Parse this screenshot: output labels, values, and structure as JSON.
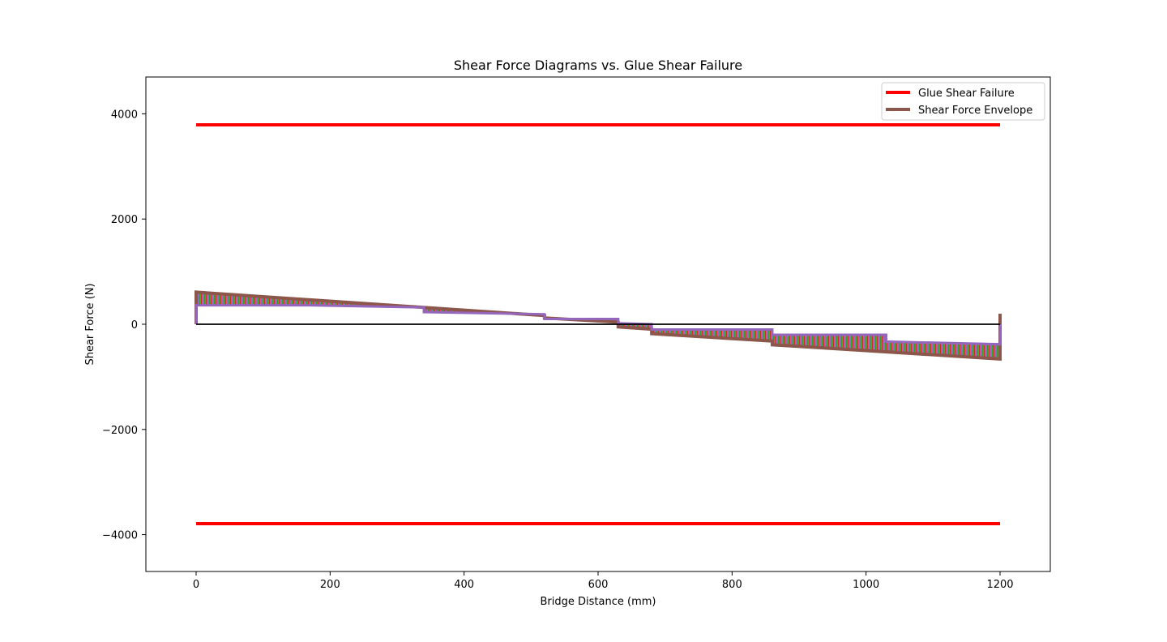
{
  "chart_data": {
    "type": "line",
    "title": "Shear Force Diagrams vs. Glue Shear Failure",
    "xlabel": "Bridge Distance (mm)",
    "ylabel": "Shear Force (N)",
    "xlim": [
      -75,
      1275
    ],
    "ylim": [
      -4700,
      4700
    ],
    "xticks": [
      0,
      200,
      400,
      600,
      800,
      1000,
      1200
    ],
    "xtick_labels": [
      "0",
      "200",
      "400",
      "600",
      "800",
      "1000",
      "1200"
    ],
    "yticks": [
      -4000,
      -2000,
      0,
      2000,
      4000
    ],
    "ytick_labels": [
      "−4000",
      "−2000",
      "0",
      "2000",
      "4000"
    ],
    "grid": false,
    "legend_position": "top-right",
    "series": [
      {
        "name": "Glue Shear Failure",
        "color": "#ff0000",
        "lines": [
          {
            "x": [
              0,
              1200
            ],
            "y": [
              3790,
              3790
            ]
          },
          {
            "x": [
              0,
              1200
            ],
            "y": [
              -3790,
              -3790
            ]
          }
        ]
      },
      {
        "name": "Shear Force Envelope",
        "color": "#8c564b",
        "lines": [
          {
            "x": [
              0,
              0,
              520,
              520,
              630,
              630,
              680,
              680,
              860,
              860,
              1200,
              1200
            ],
            "y": [
              0,
              610,
              165,
              120,
              40,
              -50,
              -95,
              -180,
              -320,
              -390,
              -660,
              200
            ]
          },
          {
            "x": [
              0,
              0,
              170,
              340,
              340,
              520,
              520,
              630,
              630,
              680,
              680,
              860,
              860,
              1030,
              1030,
              1200,
              1200
            ],
            "y": [
              0,
              360,
              360,
              320,
              230,
              190,
              100,
              100,
              20,
              0,
              -100,
              -100,
              -200,
              -200,
              -330,
              -380,
              0
            ]
          }
        ]
      },
      {
        "name": "",
        "color": "#000000",
        "lines": [
          {
            "x": [
              0,
              1200
            ],
            "y": [
              0,
              0
            ]
          }
        ]
      }
    ]
  }
}
